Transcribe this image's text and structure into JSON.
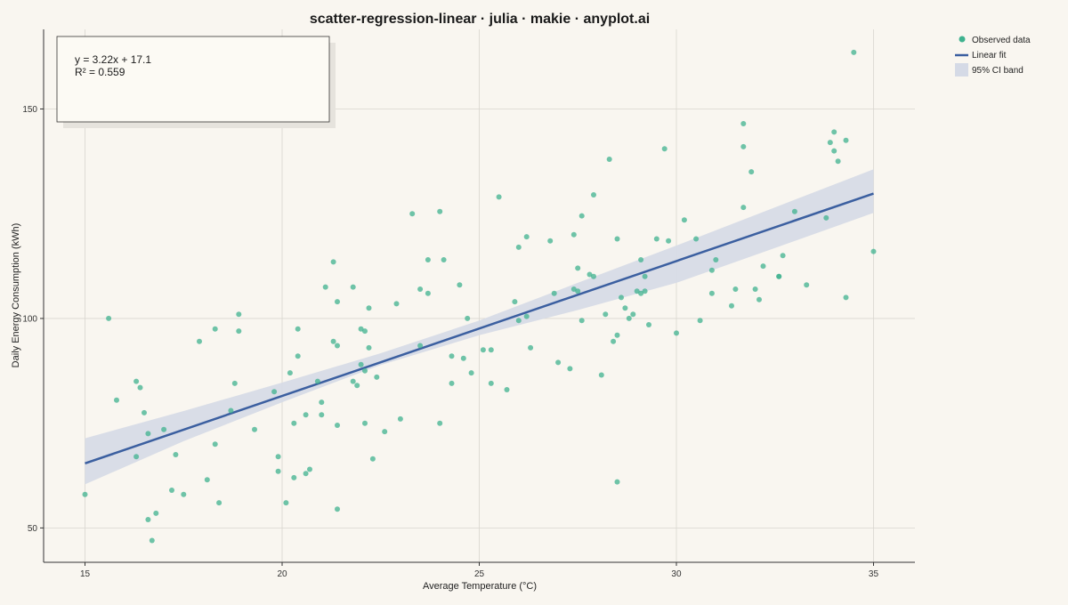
{
  "chart_data": {
    "type": "scatter",
    "title": "scatter-regression-linear · julia · makie · anyplot.ai",
    "xlabel": "Average Temperature (°C)",
    "ylabel": "Daily Energy Consumption (kWh)",
    "xlim": [
      13.95,
      36.05
    ],
    "ylim": [
      41.8,
      169.0
    ],
    "x_ticks": [
      15,
      20,
      25,
      30,
      35
    ],
    "y_ticks": [
      50,
      100,
      150
    ],
    "grid": true,
    "legend_position": "top-right-outside",
    "annotation": {
      "equation": "y = 3.22x + 17.1",
      "r_squared": "R² = 0.559"
    },
    "legend": [
      {
        "label": "Observed data",
        "kind": "point"
      },
      {
        "label": "Linear fit",
        "kind": "line"
      },
      {
        "label": "95% CI band",
        "kind": "band"
      }
    ],
    "colors": {
      "points": "#3fb28f",
      "fit_line": "#3b5fa0",
      "ci_band": "#d5dae6",
      "grid": "#d9d6cf",
      "annotation_bg": "#fcfaf4",
      "background": "#f9f6f0"
    },
    "fit": {
      "slope": 3.22,
      "intercept": 17.1,
      "x_range": [
        15,
        35
      ]
    },
    "ci_band": {
      "x": [
        15,
        17.5,
        20,
        22.5,
        25,
        27.5,
        30,
        32.5,
        35
      ],
      "lower": [
        60.4,
        70.7,
        80.0,
        88.9,
        96.0,
        102.0,
        108.5,
        116.8,
        125.2
      ],
      "upper": [
        71.4,
        77.9,
        84.7,
        91.7,
        99.5,
        108.5,
        117.4,
        126.5,
        135.6
      ]
    },
    "points": [
      [
        15.0,
        58.0
      ],
      [
        15.6,
        100.0
      ],
      [
        15.8,
        80.5
      ],
      [
        16.3,
        85.0
      ],
      [
        16.3,
        67.0
      ],
      [
        16.4,
        83.5
      ],
      [
        16.5,
        77.5
      ],
      [
        16.6,
        72.5
      ],
      [
        16.6,
        52.0
      ],
      [
        16.7,
        47.0
      ],
      [
        16.8,
        53.5
      ],
      [
        17.0,
        73.5
      ],
      [
        17.2,
        59.0
      ],
      [
        17.3,
        67.5
      ],
      [
        17.5,
        58.0
      ],
      [
        17.9,
        94.5
      ],
      [
        18.1,
        61.5
      ],
      [
        18.3,
        97.5
      ],
      [
        18.3,
        70.0
      ],
      [
        18.4,
        56.0
      ],
      [
        18.7,
        78.0
      ],
      [
        18.8,
        84.5
      ],
      [
        18.9,
        101.0
      ],
      [
        18.9,
        97.0
      ],
      [
        19.3,
        73.5
      ],
      [
        19.8,
        82.5
      ],
      [
        19.9,
        67.0
      ],
      [
        19.9,
        63.5
      ],
      [
        20.1,
        56.0
      ],
      [
        20.2,
        87.0
      ],
      [
        20.3,
        62.0
      ],
      [
        20.3,
        75.0
      ],
      [
        20.4,
        91.0
      ],
      [
        20.4,
        97.5
      ],
      [
        20.6,
        63.0
      ],
      [
        20.6,
        77.0
      ],
      [
        20.7,
        64.0
      ],
      [
        20.9,
        85.0
      ],
      [
        21.0,
        80.0
      ],
      [
        21.0,
        77.0
      ],
      [
        21.1,
        107.5
      ],
      [
        21.3,
        113.5
      ],
      [
        21.3,
        94.5
      ],
      [
        21.4,
        93.5
      ],
      [
        21.4,
        104.0
      ],
      [
        21.4,
        74.5
      ],
      [
        21.4,
        54.5
      ],
      [
        21.8,
        85.0
      ],
      [
        21.8,
        107.5
      ],
      [
        21.9,
        84.0
      ],
      [
        22.0,
        97.5
      ],
      [
        22.0,
        89.0
      ],
      [
        22.1,
        97.0
      ],
      [
        22.1,
        87.5
      ],
      [
        22.1,
        75.0
      ],
      [
        22.2,
        102.5
      ],
      [
        22.2,
        93.0
      ],
      [
        22.3,
        66.5
      ],
      [
        22.4,
        86.0
      ],
      [
        22.6,
        73.0
      ],
      [
        22.9,
        103.5
      ],
      [
        23.0,
        76.0
      ],
      [
        23.3,
        125.0
      ],
      [
        23.5,
        107.0
      ],
      [
        23.5,
        93.5
      ],
      [
        23.7,
        114.0
      ],
      [
        23.7,
        106.0
      ],
      [
        24.0,
        125.5
      ],
      [
        24.0,
        75.0
      ],
      [
        24.1,
        114.0
      ],
      [
        24.3,
        91.0
      ],
      [
        24.3,
        84.5
      ],
      [
        24.5,
        108.0
      ],
      [
        24.6,
        90.5
      ],
      [
        24.7,
        100.0
      ],
      [
        24.8,
        87.0
      ],
      [
        25.1,
        92.5
      ],
      [
        25.3,
        92.5
      ],
      [
        25.3,
        84.5
      ],
      [
        25.5,
        129.0
      ],
      [
        25.7,
        83.0
      ],
      [
        25.9,
        104.0
      ],
      [
        26.0,
        117.0
      ],
      [
        26.0,
        99.5
      ],
      [
        26.2,
        119.5
      ],
      [
        26.2,
        100.5
      ],
      [
        26.3,
        93.0
      ],
      [
        26.8,
        118.5
      ],
      [
        26.9,
        106.0
      ],
      [
        27.0,
        89.5
      ],
      [
        27.3,
        88.0
      ],
      [
        27.4,
        120.0
      ],
      [
        27.4,
        107.0
      ],
      [
        27.5,
        112.0
      ],
      [
        27.5,
        106.5
      ],
      [
        27.6,
        124.5
      ],
      [
        27.6,
        99.5
      ],
      [
        27.8,
        110.5
      ],
      [
        27.9,
        129.5
      ],
      [
        27.9,
        110.0
      ],
      [
        28.1,
        86.5
      ],
      [
        28.2,
        101.0
      ],
      [
        28.3,
        138.0
      ],
      [
        28.4,
        94.5
      ],
      [
        28.5,
        119.0
      ],
      [
        28.5,
        96.0
      ],
      [
        28.5,
        61.0
      ],
      [
        28.6,
        105.0
      ],
      [
        28.7,
        102.5
      ],
      [
        28.8,
        100.0
      ],
      [
        28.9,
        101.0
      ],
      [
        29.0,
        106.5
      ],
      [
        29.1,
        114.0
      ],
      [
        29.1,
        106.0
      ],
      [
        29.2,
        110.0
      ],
      [
        29.2,
        106.5
      ],
      [
        29.3,
        98.5
      ],
      [
        29.5,
        119.0
      ],
      [
        29.7,
        140.5
      ],
      [
        29.8,
        118.5
      ],
      [
        30.0,
        96.5
      ],
      [
        30.2,
        123.5
      ],
      [
        30.5,
        119.0
      ],
      [
        30.6,
        99.5
      ],
      [
        30.9,
        111.5
      ],
      [
        30.9,
        106.0
      ],
      [
        31.0,
        114.0
      ],
      [
        31.4,
        103.0
      ],
      [
        31.5,
        107.0
      ],
      [
        31.7,
        146.5
      ],
      [
        31.7,
        141.0
      ],
      [
        31.7,
        126.5
      ],
      [
        31.9,
        135.0
      ],
      [
        32.0,
        107.0
      ],
      [
        32.1,
        104.5
      ],
      [
        32.2,
        112.5
      ],
      [
        32.6,
        110.0
      ],
      [
        32.6,
        110.0
      ],
      [
        32.7,
        115.0
      ],
      [
        33.0,
        125.5
      ],
      [
        33.3,
        108.0
      ],
      [
        33.8,
        124.0
      ],
      [
        33.9,
        142.0
      ],
      [
        34.0,
        144.5
      ],
      [
        34.0,
        140.0
      ],
      [
        34.1,
        137.5
      ],
      [
        34.3,
        142.5
      ],
      [
        34.3,
        105.0
      ],
      [
        34.5,
        163.5
      ],
      [
        35.0,
        116.0
      ]
    ]
  }
}
